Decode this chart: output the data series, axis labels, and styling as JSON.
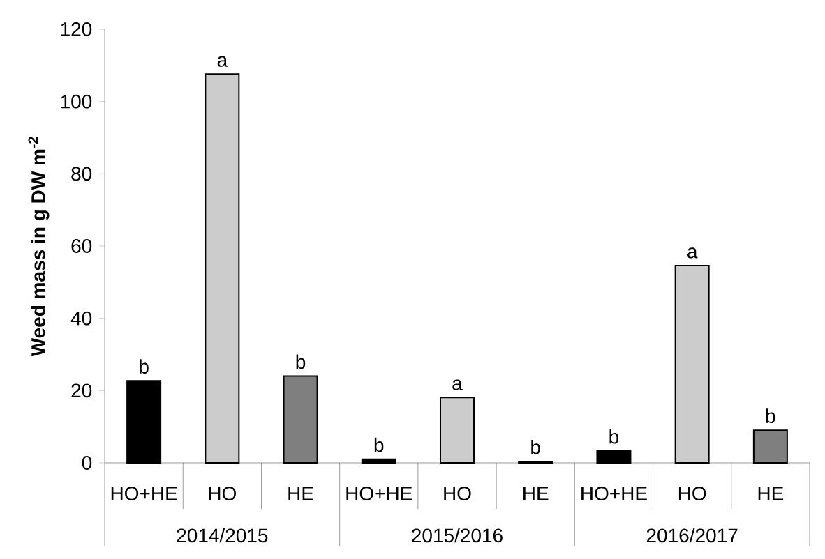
{
  "chart_data": {
    "type": "bar",
    "ylabel": "Weed mass in g DW m$^{-2}$",
    "categories": [
      "HO+HE",
      "HO",
      "HE",
      "HO+HE",
      "HO",
      "HE",
      "HO+HE",
      "HO",
      "HE"
    ],
    "values": [
      22.7,
      107.6,
      24,
      1,
      18.1,
      0.4,
      3.3,
      54.6,
      9
    ],
    "value_labels": [
      "b",
      "a",
      "b",
      "b",
      "a",
      "b",
      "b",
      "a",
      "b"
    ],
    "colors": [
      "#000000",
      "#cccccc",
      "#7f7f7f",
      "#000000",
      "#cccccc",
      "#7f7f7f",
      "#000000",
      "#cccccc",
      "#7f7f7f"
    ],
    "annotations": [
      "2014/2015",
      "2015/2016",
      "2016/2017"
    ],
    "ylim": [
      0,
      120
    ],
    "yticks": [
      0,
      20,
      40,
      60,
      80,
      100,
      120
    ]
  }
}
